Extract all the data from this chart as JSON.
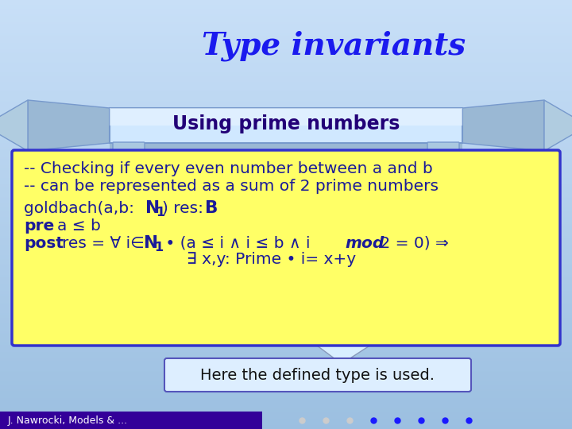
{
  "title": "Type invariants",
  "title_color": "#1a1aee",
  "title_shadow_color": "#000066",
  "banner_text": "Using prime numbers",
  "banner_text_color": "#220077",
  "content_box_bg": "#ffff66",
  "content_box_border": "#3333cc",
  "text_color": "#1a1a99",
  "footer_text": "J. Nawrocki, Models & ...",
  "footer_bg": "#330099",
  "footer_text_color": "#ffffff",
  "callout_text": "Here the defined type is used.",
  "callout_border": "#5555bb",
  "callout_bg": "#ddeeff",
  "bg_top": "#c8e0f8",
  "bg_bottom": "#9bbfe0",
  "banner_main_color": "#d0e8ff",
  "banner_edge_color": "#7799cc",
  "banner_side_color": "#8aaccc",
  "dot_colors": [
    "#cccccc",
    "#cccccc",
    "#cccccc",
    "#1a1aff",
    "#1a1aff",
    "#1a1aff",
    "#1a1aff",
    "#1a1aff"
  ]
}
